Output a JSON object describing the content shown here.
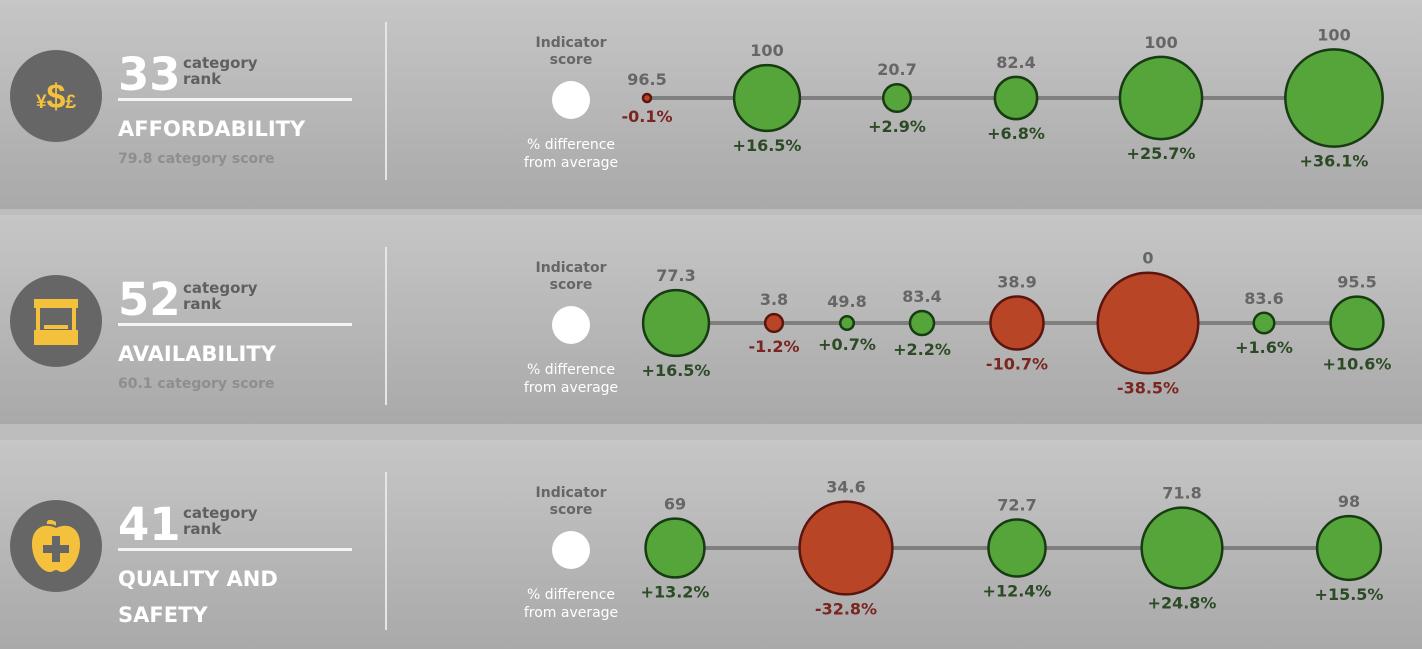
{
  "labels": {
    "rank_label": "category\nrank",
    "indicator_score": "Indicator\nscore",
    "pct_difference": "% difference\nfrom average"
  },
  "colors": {
    "positive": "#56a53a",
    "negative": "#b84526",
    "positive_text": "#2c4a25",
    "negative_text": "#7a2520",
    "line": "#7f7f7f"
  },
  "categories": [
    {
      "name": "AFFORDABILITY",
      "rank": "33",
      "score_text": "79.8 category score",
      "icon": "currency-icon"
    },
    {
      "name": "AVAILABILITY",
      "rank": "52",
      "score_text": "60.1 category score",
      "icon": "market-stall-icon"
    },
    {
      "name": "QUALITY AND\nSAFETY",
      "rank": "41",
      "score_text": "",
      "icon": "apple-plus-icon"
    }
  ],
  "chart_data": [
    {
      "type": "scatter",
      "category": "AFFORDABILITY",
      "scores": [
        "96.5",
        "100",
        "20.7",
        "82.4",
        "100",
        "100"
      ],
      "differences": [
        "-0.1%",
        "+16.5%",
        "+2.9%",
        "+6.8%",
        "+25.7%",
        "+36.1%"
      ],
      "difference_values": [
        -0.1,
        16.5,
        2.9,
        6.8,
        25.7,
        36.1
      ]
    },
    {
      "type": "scatter",
      "category": "AVAILABILITY",
      "scores": [
        "77.3",
        "3.8",
        "49.8",
        "83.4",
        "38.9",
        "0",
        "83.6",
        "95.5"
      ],
      "differences": [
        "+16.5%",
        "-1.2%",
        "+0.7%",
        "+2.2%",
        "-10.7%",
        "-38.5%",
        "+1.6%",
        "+10.6%"
      ],
      "difference_values": [
        16.5,
        -1.2,
        0.7,
        2.2,
        -10.7,
        -38.5,
        1.6,
        10.6
      ]
    },
    {
      "type": "scatter",
      "category": "QUALITY AND SAFETY",
      "scores": [
        "69",
        "34.6",
        "72.7",
        "71.8",
        "98"
      ],
      "differences": [
        "+13.2%",
        "-32.8%",
        "+12.4%",
        "+24.8%",
        "+15.5%"
      ],
      "difference_values": [
        13.2,
        -32.8,
        12.4,
        24.8,
        15.5
      ]
    }
  ]
}
